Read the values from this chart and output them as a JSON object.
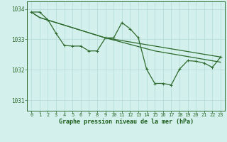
{
  "bg_color": "#d4f0ec",
  "grid_color": "#b8ddd9",
  "line_color": "#2d6a2d",
  "marker_color": "#2d6a2d",
  "xlabel": "Graphe pression niveau de la mer (hPa)",
  "xlabel_color": "#1a5c1a",
  "tick_color": "#2d6a2d",
  "ylim": [
    1030.65,
    1034.25
  ],
  "xlim": [
    -0.5,
    23.5
  ],
  "yticks": [
    1031,
    1032,
    1033,
    1034
  ],
  "xticks": [
    0,
    1,
    2,
    3,
    4,
    5,
    6,
    7,
    8,
    9,
    10,
    11,
    12,
    13,
    14,
    15,
    16,
    17,
    18,
    19,
    20,
    21,
    22,
    23
  ],
  "series0": [
    1033.9,
    1033.9,
    1033.65,
    1033.2,
    1032.8,
    1032.78,
    1032.78,
    1032.62,
    1032.62,
    1033.05,
    1033.05,
    1033.55,
    1033.35,
    1033.05,
    1032.02,
    1031.55,
    1031.55,
    1031.5,
    1032.02,
    1032.3,
    1032.28,
    1032.22,
    1032.08,
    1032.42
  ],
  "line1_x": [
    0,
    1,
    9,
    15,
    23
  ],
  "line1_y": [
    1033.9,
    1033.72,
    1033.05,
    1032.78,
    1032.42
  ],
  "line2_x": [
    0,
    1,
    9,
    15,
    23
  ],
  "line2_y": [
    1033.9,
    1033.72,
    1033.05,
    1032.62,
    1032.25
  ]
}
